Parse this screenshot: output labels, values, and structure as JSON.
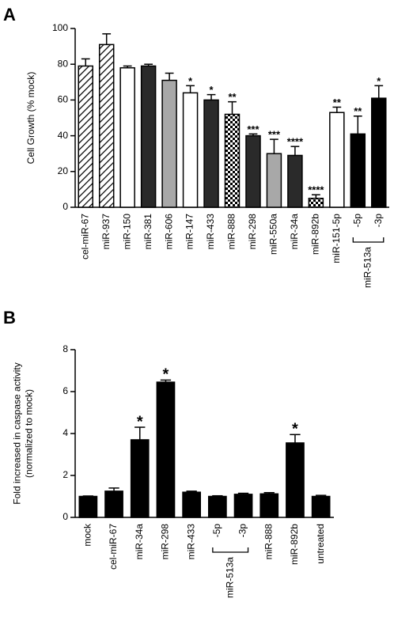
{
  "chart_data": [
    {
      "panel": "A",
      "type": "bar",
      "ylabel": [
        "Cell Growth (% mock)"
      ],
      "categories": [
        "cel-miR-67",
        "miR-937",
        "miR-150",
        "miR-381",
        "miR-606",
        "miR-147",
        "miR-433",
        "miR-888",
        "miR-298",
        "miR-550a",
        "miR-34a",
        "miR-892b",
        "miR-151-5p",
        "-5p",
        "-3p"
      ],
      "values": [
        79,
        91,
        78,
        79,
        71,
        64,
        60,
        52,
        40,
        30,
        29,
        5,
        53,
        41,
        61
      ],
      "errors": [
        4,
        6,
        1,
        1,
        4,
        4,
        3,
        7,
        1,
        8,
        5,
        2,
        3,
        10,
        7
      ],
      "annotations": [
        null,
        null,
        null,
        null,
        null,
        "*",
        "*",
        "**",
        "***",
        "***",
        "****",
        "****",
        "**",
        "**",
        "*"
      ],
      "fills": [
        "hatch",
        "hatch",
        "#ffffff",
        "#2a2a2a",
        "#a8a8a8",
        "#ffffff",
        "#2a2a2a",
        "checker",
        "#2a2a2a",
        "#a8a8a8",
        "#2a2a2a",
        "checker",
        "#ffffff",
        "#000000",
        "#000000"
      ],
      "group": {
        "label": "miR-513a",
        "span": [
          13,
          14
        ]
      },
      "ylim": [
        0,
        100
      ],
      "yticks": [
        0,
        20,
        40,
        60,
        80,
        100
      ]
    },
    {
      "panel": "B",
      "type": "bar",
      "ylabel": [
        "Fold increased in caspase activity",
        "(normalized to mock)"
      ],
      "categories": [
        "mock",
        "cel-miR-67",
        "miR-34a",
        "miR-298",
        "miR-433",
        "-5p",
        "-3p",
        "miR-888",
        "miR-892b",
        "untreated"
      ],
      "values": [
        1.0,
        1.25,
        3.7,
        6.45,
        1.2,
        1.0,
        1.1,
        1.12,
        3.55,
        1.0
      ],
      "errors": [
        0.02,
        0.15,
        0.6,
        0.1,
        0.05,
        0.03,
        0.05,
        0.06,
        0.4,
        0.05
      ],
      "annotations": [
        null,
        null,
        "*",
        "*",
        null,
        null,
        null,
        null,
        "*",
        null
      ],
      "fills": [
        "#000000",
        "#000000",
        "#000000",
        "#000000",
        "#000000",
        "#000000",
        "#000000",
        "#000000",
        "#000000",
        "#000000"
      ],
      "group": {
        "label": "miR-513a",
        "span": [
          5,
          6
        ]
      },
      "ylim": [
        0,
        8
      ],
      "yticks": [
        0,
        2,
        4,
        6,
        8
      ]
    }
  ]
}
